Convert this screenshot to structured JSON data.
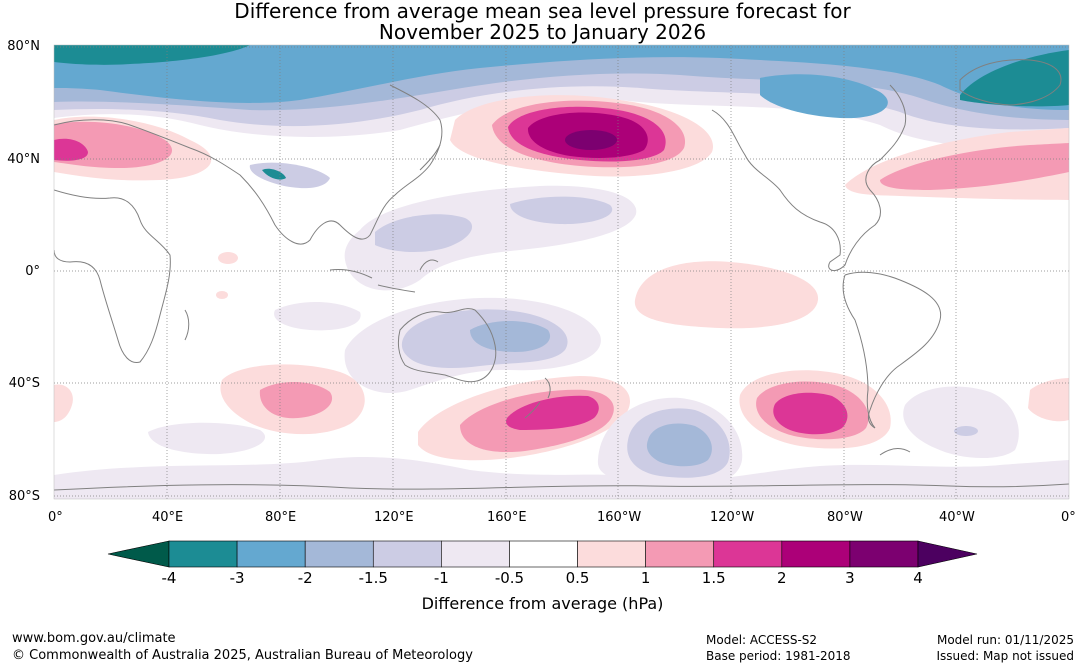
{
  "title": {
    "line1": "Difference from average mean sea level pressure forecast for",
    "line2": "November 2025 to January 2026"
  },
  "latitude_labels": [
    "80°N",
    "40°N",
    "0°",
    "40°S",
    "80°S"
  ],
  "longitude_labels": [
    "0°",
    "40°E",
    "80°E",
    "120°E",
    "160°E",
    "160°W",
    "120°W",
    "80°W",
    "40°W",
    "0°"
  ],
  "colorbar": {
    "title": "Difference from average (hPa)",
    "ticks": [
      "-4",
      "-3",
      "-2",
      "-1.5",
      "-1",
      "-0.5",
      "0.5",
      "1",
      "1.5",
      "2",
      "3",
      "4"
    ],
    "colors": [
      "#005a4a",
      "#1c8c94",
      "#64a8d0",
      "#a4b8d8",
      "#cccce4",
      "#eee8f2",
      "#ffffff",
      "#fcdcdc",
      "#f49ab4",
      "#dc3696",
      "#ac0078",
      "#7c0070",
      "#4c0060"
    ]
  },
  "footer": {
    "website": "www.bom.gov.au/climate",
    "copyright": "© Commonwealth of Australia 2025, Australian Bureau of Meteorology",
    "model": "Model: ACCESS-S2",
    "base_period": "Base period: 1981-2018",
    "model_run": "Model run: 01/11/2025",
    "issued": "Issued: Map not issued"
  }
}
